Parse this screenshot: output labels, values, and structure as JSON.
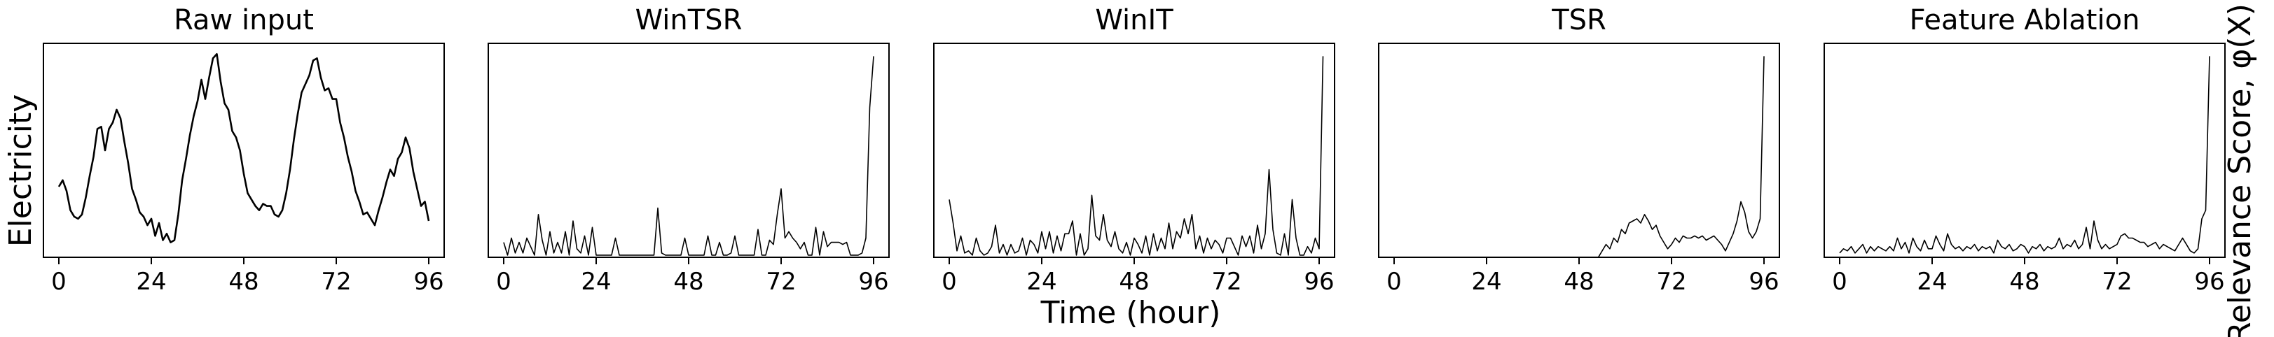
{
  "figure": {
    "xlabel": "Time (hour)",
    "ylabel_left": "Electricity",
    "ylabel_right": "Relevance Score, φ(X)"
  },
  "chart_data": [
    {
      "type": "line",
      "title": "Raw input",
      "xticks": [
        0,
        24,
        48,
        72,
        96
      ],
      "xlim": [
        -4,
        100
      ],
      "ylim": [
        0,
        1
      ],
      "y": [
        0.33,
        0.36,
        0.31,
        0.22,
        0.19,
        0.18,
        0.2,
        0.28,
        0.38,
        0.47,
        0.6,
        0.61,
        0.5,
        0.6,
        0.63,
        0.69,
        0.65,
        0.54,
        0.44,
        0.32,
        0.27,
        0.21,
        0.19,
        0.15,
        0.18,
        0.1,
        0.16,
        0.08,
        0.11,
        0.07,
        0.08,
        0.2,
        0.36,
        0.46,
        0.57,
        0.66,
        0.73,
        0.83,
        0.74,
        0.84,
        0.93,
        0.95,
        0.82,
        0.72,
        0.69,
        0.59,
        0.56,
        0.5,
        0.39,
        0.3,
        0.27,
        0.24,
        0.22,
        0.25,
        0.24,
        0.24,
        0.2,
        0.19,
        0.22,
        0.3,
        0.41,
        0.55,
        0.67,
        0.77,
        0.81,
        0.85,
        0.92,
        0.93,
        0.84,
        0.78,
        0.79,
        0.74,
        0.74,
        0.63,
        0.56,
        0.47,
        0.4,
        0.31,
        0.26,
        0.2,
        0.21,
        0.18,
        0.15,
        0.22,
        0.28,
        0.35,
        0.41,
        0.38,
        0.46,
        0.49,
        0.56,
        0.51,
        0.4,
        0.32,
        0.24,
        0.26,
        0.17
      ]
    },
    {
      "type": "line",
      "title": "WinTSR",
      "xticks": [
        0,
        24,
        48,
        72,
        96
      ],
      "xlim": [
        -4,
        100
      ],
      "ylim": [
        0,
        1
      ],
      "y": [
        0.07,
        0.01,
        0.09,
        0.02,
        0.07,
        0.02,
        0.09,
        0.05,
        0.01,
        0.2,
        0.08,
        0.01,
        0.12,
        0.02,
        0.07,
        0.02,
        0.12,
        0.01,
        0.17,
        0.04,
        0.02,
        0.1,
        0.01,
        0.14,
        0.01,
        0.01,
        0.01,
        0.01,
        0.01,
        0.09,
        0.01,
        0.01,
        0.01,
        0.01,
        0.01,
        0.01,
        0.01,
        0.01,
        0.01,
        0.01,
        0.23,
        0.02,
        0.01,
        0.01,
        0.01,
        0.01,
        0.01,
        0.09,
        0.01,
        0.01,
        0.01,
        0.01,
        0.01,
        0.1,
        0.01,
        0.01,
        0.07,
        0.01,
        0.01,
        0.02,
        0.1,
        0.01,
        0.01,
        0.01,
        0.01,
        0.01,
        0.13,
        0.01,
        0.01,
        0.08,
        0.06,
        0.2,
        0.32,
        0.09,
        0.12,
        0.09,
        0.07,
        0.04,
        0.07,
        0.01,
        0.01,
        0.14,
        0.01,
        0.12,
        0.05,
        0.07,
        0.07,
        0.07,
        0.06,
        0.07,
        0.01,
        0.01,
        0.01,
        0.02,
        0.09,
        0.7,
        0.94
      ]
    },
    {
      "type": "line",
      "title": "WinIT",
      "xticks": [
        0,
        24,
        48,
        72,
        96
      ],
      "xlim": [
        -4,
        100
      ],
      "ylim": [
        0,
        1
      ],
      "y": [
        0.27,
        0.16,
        0.03,
        0.1,
        0.02,
        0.03,
        0.01,
        0.09,
        0.03,
        0.01,
        0.02,
        0.05,
        0.15,
        0.02,
        0.06,
        0.01,
        0.06,
        0.02,
        0.03,
        0.09,
        0.01,
        0.08,
        0.06,
        0.02,
        0.12,
        0.04,
        0.12,
        0.02,
        0.1,
        0.03,
        0.11,
        0.11,
        0.17,
        0.01,
        0.11,
        0.01,
        0.04,
        0.29,
        0.1,
        0.08,
        0.2,
        0.08,
        0.05,
        0.12,
        0.04,
        0.02,
        0.07,
        0.01,
        0.09,
        0.06,
        0.02,
        0.1,
        0.01,
        0.11,
        0.03,
        0.09,
        0.04,
        0.16,
        0.04,
        0.12,
        0.09,
        0.18,
        0.11,
        0.2,
        0.04,
        0.1,
        0.02,
        0.09,
        0.04,
        0.08,
        0.06,
        0.02,
        0.09,
        0.09,
        0.05,
        0.01,
        0.1,
        0.05,
        0.1,
        0.02,
        0.15,
        0.04,
        0.11,
        0.41,
        0.13,
        0.02,
        0.01,
        0.11,
        0.01,
        0.27,
        0.09,
        0.01,
        0.01,
        0.05,
        0.02,
        0.09,
        0.04,
        0.94
      ]
    },
    {
      "type": "line",
      "title": "TSR",
      "xticks": [
        0,
        24,
        48,
        72,
        96
      ],
      "xlim": [
        -4,
        100
      ],
      "ylim": [
        0,
        1
      ],
      "y": [
        0.0,
        0.0,
        0.0,
        0.0,
        0.0,
        0.0,
        0.0,
        0.0,
        0.0,
        0.0,
        0.0,
        0.0,
        0.0,
        0.0,
        0.0,
        0.0,
        0.0,
        0.0,
        0.0,
        0.0,
        0.0,
        0.0,
        0.0,
        0.0,
        0.0,
        0.0,
        0.0,
        0.0,
        0.0,
        0.0,
        0.0,
        0.0,
        0.0,
        0.0,
        0.0,
        0.0,
        0.0,
        0.0,
        0.0,
        0.0,
        0.0,
        0.0,
        0.0,
        0.0,
        0.0,
        0.0,
        0.0,
        0.0,
        0.0,
        0.0,
        0.0,
        0.0,
        0.0,
        0.0,
        0.03,
        0.06,
        0.04,
        0.09,
        0.07,
        0.13,
        0.11,
        0.16,
        0.17,
        0.18,
        0.16,
        0.2,
        0.17,
        0.13,
        0.15,
        0.1,
        0.07,
        0.04,
        0.06,
        0.09,
        0.07,
        0.1,
        0.09,
        0.09,
        0.1,
        0.09,
        0.1,
        0.08,
        0.09,
        0.1,
        0.08,
        0.06,
        0.03,
        0.07,
        0.11,
        0.17,
        0.26,
        0.21,
        0.12,
        0.09,
        0.12,
        0.18,
        0.94
      ]
    },
    {
      "type": "line",
      "title": "Feature Ablation",
      "xticks": [
        0,
        24,
        48,
        72,
        96
      ],
      "xlim": [
        -4,
        100
      ],
      "ylim": [
        0,
        1
      ],
      "y": [
        0.02,
        0.04,
        0.03,
        0.05,
        0.02,
        0.04,
        0.06,
        0.02,
        0.05,
        0.03,
        0.05,
        0.04,
        0.03,
        0.05,
        0.03,
        0.09,
        0.04,
        0.07,
        0.02,
        0.09,
        0.05,
        0.03,
        0.08,
        0.04,
        0.04,
        0.1,
        0.06,
        0.03,
        0.11,
        0.06,
        0.04,
        0.05,
        0.03,
        0.05,
        0.04,
        0.06,
        0.03,
        0.05,
        0.04,
        0.05,
        0.02,
        0.08,
        0.05,
        0.04,
        0.06,
        0.03,
        0.04,
        0.06,
        0.05,
        0.02,
        0.05,
        0.04,
        0.06,
        0.03,
        0.05,
        0.04,
        0.05,
        0.09,
        0.04,
        0.06,
        0.05,
        0.08,
        0.04,
        0.06,
        0.14,
        0.04,
        0.17,
        0.08,
        0.04,
        0.06,
        0.04,
        0.05,
        0.06,
        0.1,
        0.11,
        0.09,
        0.09,
        0.08,
        0.07,
        0.07,
        0.05,
        0.06,
        0.07,
        0.04,
        0.06,
        0.05,
        0.04,
        0.03,
        0.06,
        0.09,
        0.06,
        0.03,
        0.02,
        0.04,
        0.18,
        0.22,
        0.94
      ]
    }
  ]
}
